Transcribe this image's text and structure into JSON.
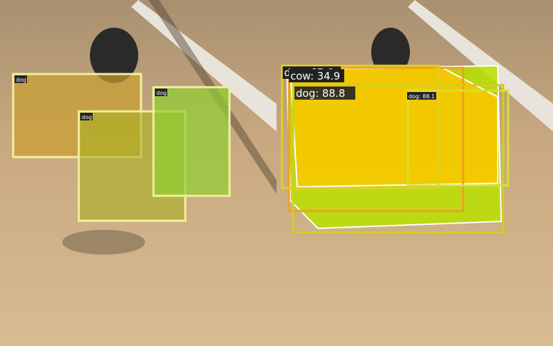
{
  "left_panel": {
    "detections": [
      {
        "label": "dog"
      },
      {
        "label": "dog"
      },
      {
        "label": "dog"
      }
    ]
  },
  "right_panel": {
    "detections": [
      {
        "label": "dog: 67.6"
      },
      {
        "label": "cow: 34.9"
      },
      {
        "label": "dog: 88.8"
      },
      {
        "label": "dog: 88.1"
      }
    ]
  }
}
